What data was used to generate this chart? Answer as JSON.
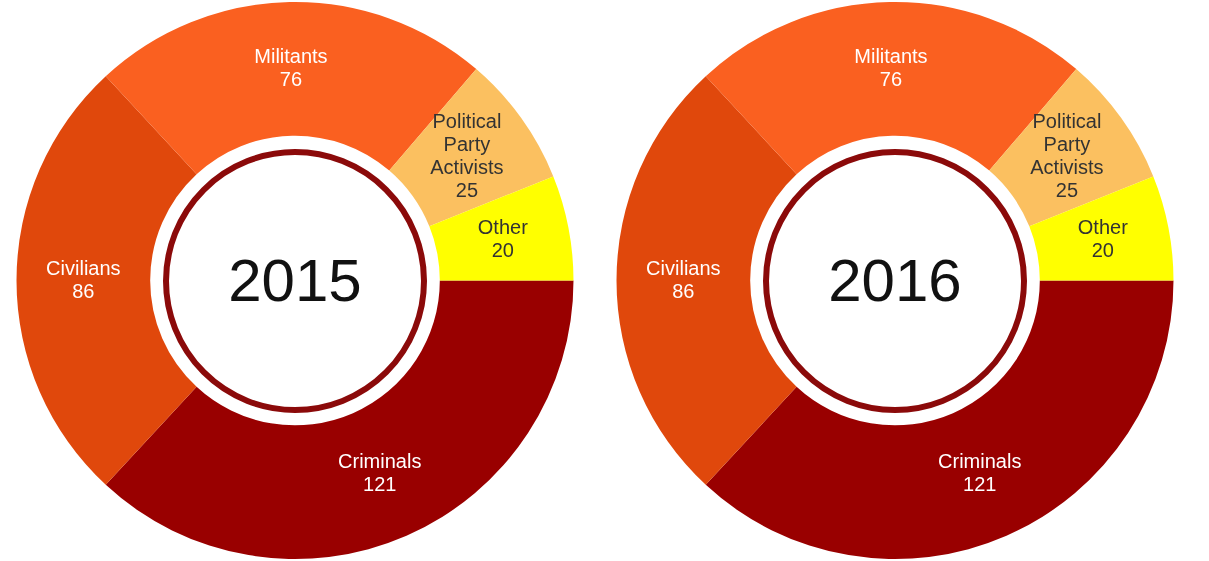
{
  "chart_data": [
    {
      "type": "donut",
      "title": "2015",
      "categories": [
        "Criminals",
        "Civilians",
        "Militants",
        "Political Party Activists",
        "Other"
      ],
      "values": [
        121,
        86,
        76,
        25,
        20
      ],
      "colors": [
        "#990000",
        "#e0480c",
        "#fa6020",
        "#fbc060",
        "#ffff00"
      ],
      "data_labels": true,
      "legend": false
    },
    {
      "type": "donut",
      "title": "2016",
      "categories": [
        "Criminals",
        "Civilians",
        "Militants",
        "Political Party Activists",
        "Other"
      ],
      "values": [
        121,
        86,
        76,
        25,
        20
      ],
      "colors": [
        "#990000",
        "#e0480c",
        "#fa6020",
        "#fbc060",
        "#ffff00"
      ],
      "data_labels": true,
      "legend": false
    }
  ]
}
